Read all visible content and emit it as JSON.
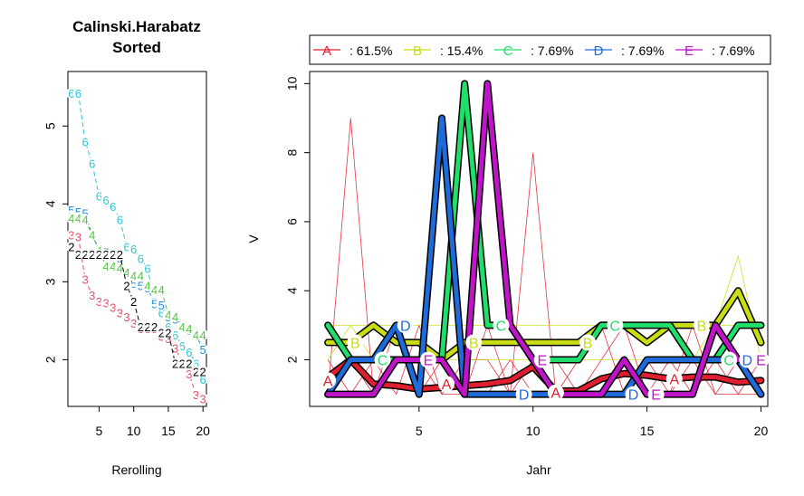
{
  "colors": {
    "A": "#DF1F2F",
    "B": "#C9DD14",
    "C": "#20DE6A",
    "D": "#1F6BD9",
    "E": "#C014C9",
    "black": "#000000"
  },
  "chart_data": [
    {
      "type": "scatter",
      "title": "Calinski.Harabatz",
      "subtitle": "Sorted",
      "xlabel": "Rerolling",
      "ylabel": "",
      "xlim": [
        0.5,
        20.5
      ],
      "ylim": [
        1.4,
        5.7
      ],
      "xticks": [
        5,
        10,
        15,
        20
      ],
      "yticks": [
        2,
        3,
        4,
        5
      ],
      "series": [
        {
          "label": "6",
          "color": "#29C8D9",
          "values": [
            5.42,
            5.42,
            4.8,
            4.52,
            4.1,
            4.05,
            3.97,
            3.8,
            3.45,
            3.42,
            3.3,
            3.17,
            2.75,
            2.6,
            2.42,
            2.32,
            2.18,
            2.1,
            1.95,
            1.75
          ]
        },
        {
          "label": "5",
          "color": "#1E90DF",
          "values": [
            3.92,
            3.9,
            3.88,
            3.6,
            3.42,
            3.38,
            3.37,
            3.3,
            3.12,
            2.98,
            2.95,
            2.92,
            2.72,
            2.7,
            2.55,
            2.52,
            2.43,
            2.38,
            2.32,
            2.13
          ]
        },
        {
          "label": "4",
          "color": "#52C442",
          "values": [
            3.82,
            3.82,
            3.8,
            3.6,
            3.4,
            3.2,
            3.2,
            3.18,
            3.12,
            3.08,
            3.08,
            2.95,
            2.9,
            2.9,
            2.58,
            2.55,
            2.42,
            2.4,
            2.32,
            2.32
          ]
        },
        {
          "label": "3",
          "color": "#DF536B",
          "values": [
            3.6,
            3.58,
            3.03,
            2.83,
            2.75,
            2.73,
            2.67,
            2.6,
            2.55,
            2.47,
            2.4,
            2.4,
            2.4,
            2.3,
            2.27,
            2.15,
            1.97,
            1.82,
            1.55,
            1.5
          ]
        },
        {
          "label": "2",
          "color": "#000000",
          "values": [
            3.45,
            3.35,
            3.35,
            3.35,
            3.35,
            3.35,
            3.35,
            3.35,
            2.95,
            2.75,
            2.42,
            2.42,
            2.42,
            2.35,
            2.35,
            1.95,
            1.95,
            1.95,
            1.85,
            1.85
          ]
        }
      ]
    },
    {
      "type": "line",
      "title": "",
      "xlabel": "Jahr",
      "ylabel": "V",
      "xlim": [
        0.2,
        20.3
      ],
      "ylim": [
        0.65,
        10.35
      ],
      "xticks": [
        5,
        10,
        15,
        20
      ],
      "yticks": [
        2,
        4,
        6,
        8,
        10
      ],
      "legend": "top",
      "legend_entries": [
        {
          "letter": "A",
          "text": ": 61.5%",
          "color": "#DF1F2F"
        },
        {
          "letter": "B",
          "text": ": 15.4%",
          "color": "#C9DD14"
        },
        {
          "letter": "C",
          "text": ": 7.69%",
          "color": "#20DE6A"
        },
        {
          "letter": "D",
          "text": ": 7.69%",
          "color": "#1F6BD9"
        },
        {
          "letter": "E",
          "text": ": 7.69%",
          "color": "#C014C9"
        }
      ],
      "x": [
        1,
        2,
        3,
        4,
        5,
        6,
        7,
        8,
        9,
        10,
        11,
        12,
        13,
        14,
        15,
        16,
        17,
        18,
        19,
        20
      ],
      "thin_series": [
        {
          "color": "#DF1F2F",
          "values": [
            1,
            9,
            1,
            3,
            1,
            2,
            1,
            3,
            1,
            8,
            1,
            2,
            3,
            1,
            2,
            1,
            3,
            1,
            2,
            1
          ]
        },
        {
          "color": "#DF1F2F",
          "values": [
            2,
            1,
            2,
            1,
            3,
            1,
            2,
            2,
            1,
            2,
            2,
            1,
            2,
            3,
            1,
            2,
            1,
            2,
            1,
            2
          ]
        },
        {
          "color": "#DF1F2F",
          "values": [
            1,
            2,
            1,
            2,
            2,
            1,
            1,
            1,
            2,
            1,
            1,
            1,
            1,
            2,
            1,
            1,
            2,
            1,
            1,
            1
          ]
        },
        {
          "color": "#C9DD14",
          "values": [
            3,
            3,
            3,
            3,
            3,
            3,
            3,
            3,
            3,
            3,
            3,
            3,
            3,
            3,
            3,
            3,
            3,
            3,
            5,
            2
          ]
        },
        {
          "color": "#C9DD14",
          "values": [
            2,
            3,
            2,
            2,
            2,
            2,
            2,
            2,
            2,
            2,
            2,
            2,
            2,
            2,
            2,
            2,
            2,
            3,
            3,
            3
          ]
        }
      ],
      "series": [
        {
          "label": "A",
          "color": "#DF1F2F",
          "values": [
            1.5,
            2.0,
            1.3,
            1.25,
            1.15,
            1.2,
            1.25,
            1.3,
            1.4,
            1.8,
            1.1,
            1.1,
            1.45,
            1.6,
            1.55,
            1.45,
            1.5,
            1.5,
            1.35,
            1.4
          ]
        },
        {
          "label": "B",
          "color": "#C9DD14",
          "values": [
            2.5,
            2.5,
            3.0,
            2.5,
            2.5,
            2.0,
            2.5,
            2.5,
            2.5,
            2.5,
            2.5,
            2.5,
            3.0,
            3.0,
            2.5,
            3.0,
            3.0,
            3.0,
            4.0,
            2.5
          ]
        },
        {
          "label": "C",
          "color": "#20DE6A",
          "values": [
            3,
            2,
            2,
            2,
            2,
            2,
            10,
            3,
            3,
            2,
            2,
            2,
            3,
            3,
            3,
            3,
            2,
            2,
            3,
            3
          ]
        },
        {
          "label": "D",
          "color": "#1F6BD9",
          "values": [
            1,
            2,
            2,
            3,
            1,
            9,
            1,
            1,
            1,
            1,
            1,
            1,
            1,
            1,
            2,
            2,
            2,
            2,
            2,
            1
          ]
        },
        {
          "label": "E",
          "color": "#C014C9",
          "values": [
            1,
            1,
            1,
            2,
            2,
            2,
            1,
            10,
            3,
            2,
            1,
            1,
            1,
            2,
            1,
            1,
            1,
            3,
            2,
            2
          ]
        }
      ],
      "point_labels": [
        {
          "label": "A",
          "x": 1,
          "y": 1.4
        },
        {
          "label": "A",
          "x": 6.2,
          "y": 1.3
        },
        {
          "label": "A",
          "x": 11,
          "y": 1.05
        },
        {
          "label": "A",
          "x": 16.2,
          "y": 1.45
        },
        {
          "label": "B",
          "x": 2.2,
          "y": 2.5
        },
        {
          "label": "B",
          "x": 7.4,
          "y": 2.5
        },
        {
          "label": "B",
          "x": 12.4,
          "y": 2.5
        },
        {
          "label": "B",
          "x": 17.4,
          "y": 3.0
        },
        {
          "label": "C",
          "x": 3.4,
          "y": 2.0
        },
        {
          "label": "C",
          "x": 8.6,
          "y": 3.0
        },
        {
          "label": "C",
          "x": 13.6,
          "y": 3.0
        },
        {
          "label": "C",
          "x": 18.6,
          "y": 2.0
        },
        {
          "label": "D",
          "x": 4.4,
          "y": 3.0
        },
        {
          "label": "D",
          "x": 9.6,
          "y": 1.0
        },
        {
          "label": "D",
          "x": 14.4,
          "y": 1.0
        },
        {
          "label": "D",
          "x": 19.4,
          "y": 2.0
        },
        {
          "label": "E",
          "x": 5.4,
          "y": 2.0
        },
        {
          "label": "E",
          "x": 10.4,
          "y": 2.0
        },
        {
          "label": "E",
          "x": 15.4,
          "y": 1.0
        },
        {
          "label": "E",
          "x": 20.0,
          "y": 2.0
        }
      ]
    }
  ]
}
